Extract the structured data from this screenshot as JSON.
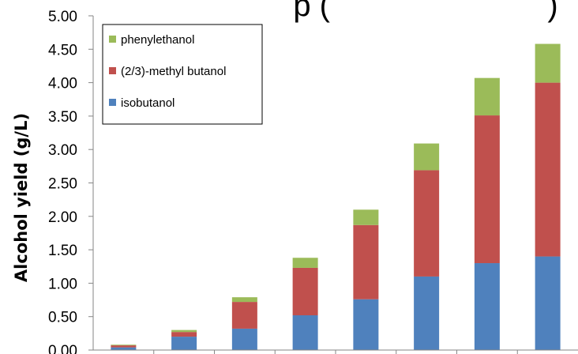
{
  "chart_data": {
    "type": "bar",
    "stacked": true,
    "title_fragment": "p (",
    "title_fragment_right": ")",
    "ylabel": "Alcohol yield (g/L)",
    "ylim": [
      0,
      5
    ],
    "yticks": [
      "0.00",
      "0.50",
      "1.00",
      "1.50",
      "2.00",
      "2.50",
      "3.00",
      "3.50",
      "4.00",
      "4.50",
      "5.00"
    ],
    "legend_position": "top-left",
    "grid": false,
    "category_count": 8,
    "series": [
      {
        "name": "isobutanol",
        "color": "#4f81bd",
        "values": [
          0.04,
          0.2,
          0.32,
          0.52,
          0.76,
          1.1,
          1.3,
          1.4
        ]
      },
      {
        "name": "(2/3)-methyl butanol",
        "color": "#c0504d",
        "values": [
          0.03,
          0.07,
          0.4,
          0.71,
          1.11,
          1.59,
          2.21,
          2.6
        ]
      },
      {
        "name": "phenylethanol",
        "color": "#9bbb59",
        "values": [
          0.01,
          0.03,
          0.07,
          0.15,
          0.23,
          0.4,
          0.56,
          0.58
        ]
      }
    ],
    "legend_order": [
      "phenylethanol",
      "(2/3)-methyl butanol",
      "isobutanol"
    ]
  }
}
